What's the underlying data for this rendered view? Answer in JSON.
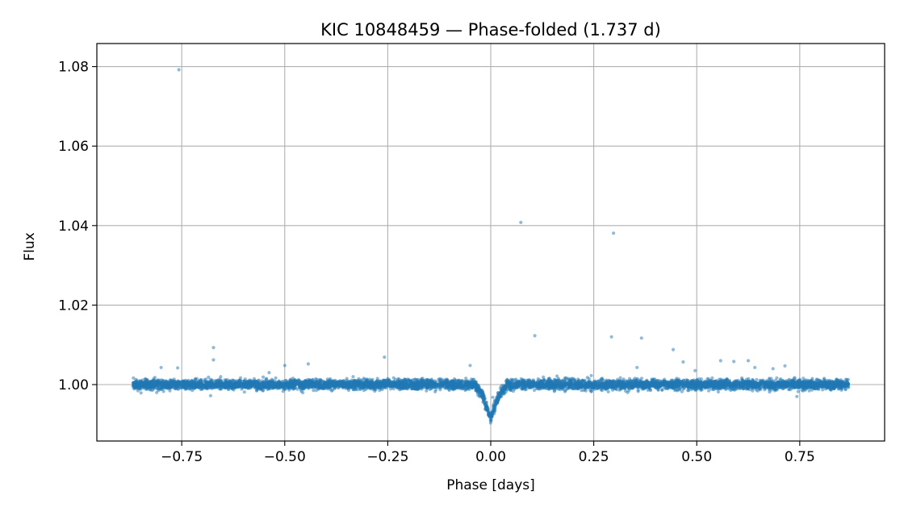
{
  "chart_data": {
    "type": "scatter",
    "title": "KIC 10848459 — Phase-folded (1.737 d)",
    "xlabel": "Phase [days]",
    "ylabel": "Flux",
    "xlim": [
      -0.956,
      0.956
    ],
    "ylim": [
      0.9858,
      1.0858
    ],
    "xticks": [
      -0.75,
      -0.5,
      -0.25,
      0.0,
      0.25,
      0.5,
      0.75
    ],
    "xtick_labels": [
      "−0.75",
      "−0.50",
      "−0.25",
      "0.00",
      "0.25",
      "0.50",
      "0.75"
    ],
    "yticks": [
      1.0,
      1.02,
      1.04,
      1.06,
      1.08
    ],
    "ytick_labels": [
      "1.00",
      "1.02",
      "1.04",
      "1.06",
      "1.08"
    ],
    "grid": true,
    "marker_color": "#1f77b4",
    "phase_range": [
      -0.8685,
      0.8685
    ],
    "period_days": 1.737,
    "baseline_flux": 1.0,
    "scatter_sigma": 0.0006,
    "transit": {
      "center": 0.0,
      "depth": 0.0085,
      "half_width": 0.042,
      "min_flux": 0.9905
    },
    "outliers": [
      {
        "x": -0.757,
        "y": 1.0792
      },
      {
        "x": -0.673,
        "y": 1.0093
      },
      {
        "x": -0.673,
        "y": 1.0062
      },
      {
        "x": -0.538,
        "y": 1.003
      },
      {
        "x": -0.5,
        "y": 1.0048
      },
      {
        "x": -0.443,
        "y": 1.0052
      },
      {
        "x": -0.258,
        "y": 1.0069
      },
      {
        "x": -0.8,
        "y": 1.0043
      },
      {
        "x": -0.76,
        "y": 1.0042
      },
      {
        "x": -0.05,
        "y": 1.0048
      },
      {
        "x": 0.073,
        "y": 1.0408
      },
      {
        "x": 0.107,
        "y": 1.0123
      },
      {
        "x": 0.298,
        "y": 1.0381
      },
      {
        "x": 0.293,
        "y": 1.012
      },
      {
        "x": 0.366,
        "y": 1.0117
      },
      {
        "x": 0.443,
        "y": 1.0088
      },
      {
        "x": 0.467,
        "y": 1.0057
      },
      {
        "x": 0.558,
        "y": 1.006
      },
      {
        "x": 0.59,
        "y": 1.0058
      },
      {
        "x": 0.625,
        "y": 1.006
      },
      {
        "x": 0.641,
        "y": 1.0043
      },
      {
        "x": 0.714,
        "y": 1.0047
      },
      {
        "x": 0.685,
        "y": 1.004
      },
      {
        "x": 0.355,
        "y": 1.0043
      },
      {
        "x": 0.496,
        "y": 1.0035
      },
      {
        "x": 0.005,
        "y": 0.9968
      },
      {
        "x": 0.02,
        "y": 0.9965
      },
      {
        "x": 0.743,
        "y": 0.997
      },
      {
        "x": -0.68,
        "y": 0.9972
      }
    ]
  }
}
